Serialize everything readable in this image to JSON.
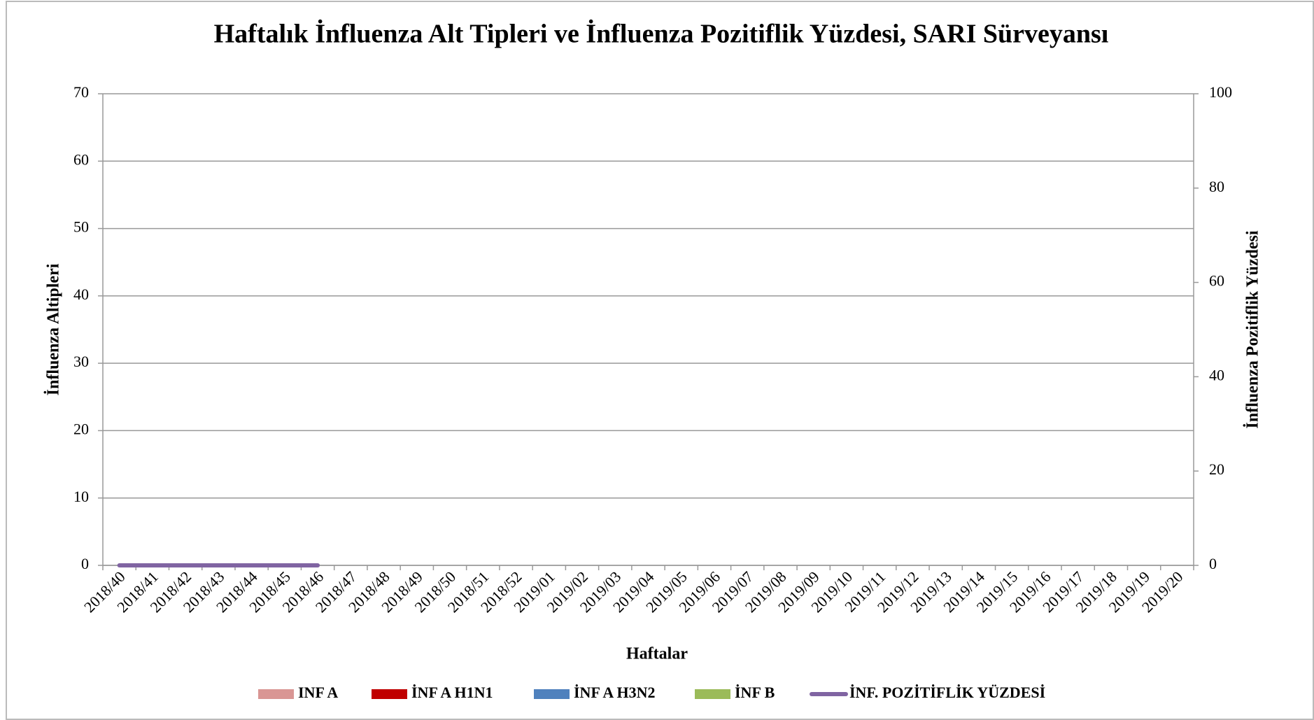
{
  "chart_data": {
    "type": "bar",
    "stacked": true,
    "title": "Haftalık İnfluenza Alt Tipleri ve İnfluenza Pozitiflik Yüzdesi, SARI Sürveyansı",
    "x_label": "Haftalar",
    "y_label": "İnfluenza Altipleri",
    "y2_label": "İnfluenza Pozitiflik Yüzdesi",
    "categories": [
      "2018/40",
      "2018/41",
      "2018/42",
      "2018/43",
      "2018/44",
      "2018/45",
      "2018/46",
      "2018/47",
      "2018/48",
      "2018/49",
      "2018/50",
      "2018/51",
      "2018/52",
      "2019/01",
      "2019/02",
      "2019/03",
      "2019/04",
      "2019/05",
      "2019/06",
      "2019/07",
      "2019/08",
      "2019/09",
      "2019/10",
      "2019/11",
      "2019/12",
      "2019/13",
      "2019/14",
      "2019/15",
      "2019/16",
      "2019/17",
      "2019/18",
      "2019/19",
      "2019/20"
    ],
    "series": [
      {
        "name": "INF A",
        "color": "#d99694",
        "values": [
          0,
          0,
          0,
          0,
          0,
          0,
          0,
          null,
          null,
          null,
          null,
          null,
          null,
          null,
          null,
          null,
          null,
          null,
          null,
          null,
          null,
          null,
          null,
          null,
          null,
          null,
          null,
          null,
          null,
          null,
          null,
          null,
          null
        ]
      },
      {
        "name": "İNF A H1N1",
        "color": "#c00000",
        "values": [
          0,
          0,
          0,
          0,
          0,
          0,
          0,
          null,
          null,
          null,
          null,
          null,
          null,
          null,
          null,
          null,
          null,
          null,
          null,
          null,
          null,
          null,
          null,
          null,
          null,
          null,
          null,
          null,
          null,
          null,
          null,
          null,
          null
        ]
      },
      {
        "name": "İNF A H3N2",
        "color": "#4f81bd",
        "values": [
          0,
          0,
          0,
          0,
          0,
          0,
          0,
          null,
          null,
          null,
          null,
          null,
          null,
          null,
          null,
          null,
          null,
          null,
          null,
          null,
          null,
          null,
          null,
          null,
          null,
          null,
          null,
          null,
          null,
          null,
          null,
          null,
          null
        ]
      },
      {
        "name": "İNF B",
        "color": "#9bbb59",
        "values": [
          0,
          0,
          0,
          0,
          0,
          0,
          0,
          null,
          null,
          null,
          null,
          null,
          null,
          null,
          null,
          null,
          null,
          null,
          null,
          null,
          null,
          null,
          null,
          null,
          null,
          null,
          null,
          null,
          null,
          null,
          null,
          null,
          null
        ]
      },
      {
        "name": "İNF. POZİTİFLİK YÜZDESİ",
        "color": "#8064a2",
        "type": "line",
        "axis": "y2",
        "values": [
          0,
          0,
          0,
          0,
          0,
          0,
          0,
          null,
          null,
          null,
          null,
          null,
          null,
          null,
          null,
          null,
          null,
          null,
          null,
          null,
          null,
          null,
          null,
          null,
          null,
          null,
          null,
          null,
          null,
          null,
          null,
          null,
          null
        ]
      }
    ],
    "ylim": [
      0,
      70
    ],
    "yticks": [
      0,
      10,
      20,
      30,
      40,
      50,
      60,
      70
    ],
    "y2lim": [
      0,
      100
    ],
    "y2ticks": [
      0,
      20,
      40,
      60,
      80,
      100
    ],
    "grid": true,
    "legend": "bottom"
  }
}
